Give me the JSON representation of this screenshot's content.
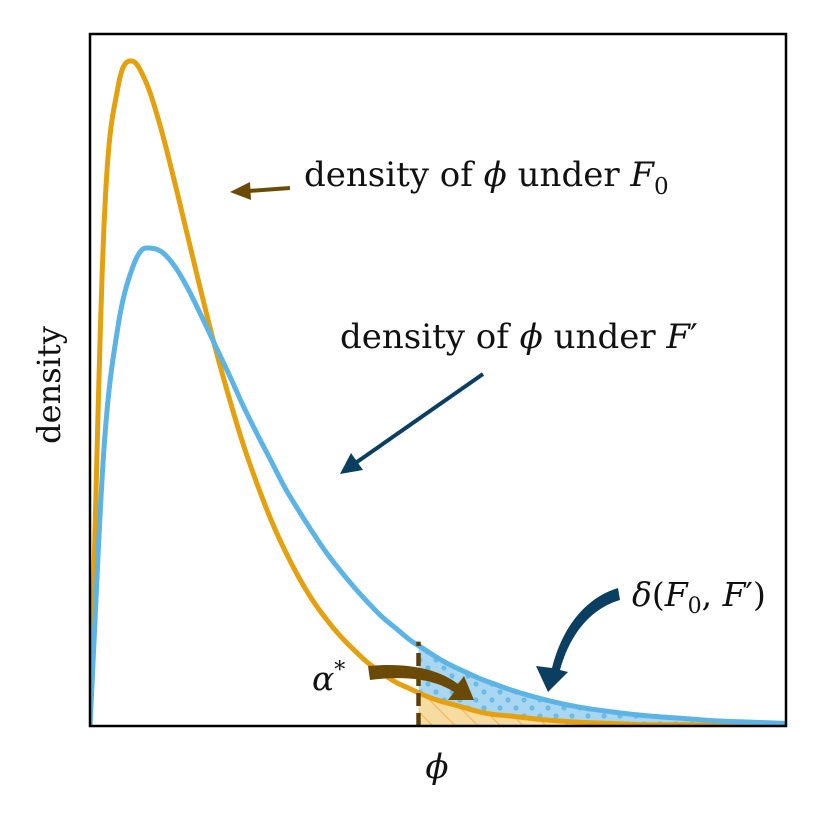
{
  "chart_data": {
    "type": "line",
    "xlabel": "ϕ",
    "ylabel": "density",
    "xlim": [
      0,
      10
    ],
    "ylim": [
      0,
      0.54
    ],
    "grid": false,
    "legend": "none",
    "threshold_x": 4.72,
    "series": [
      {
        "name": "density of ϕ under F0",
        "color": "#E5A00E",
        "x": [
          0,
          0.2,
          0.4,
          0.6,
          0.8,
          1.0,
          1.2,
          1.4,
          1.6,
          1.8,
          2.0,
          2.2,
          2.4,
          2.6,
          2.8,
          3.0,
          3.2,
          3.4,
          3.6,
          3.8,
          4.0,
          4.2,
          4.4,
          4.6,
          4.8,
          5.0,
          5.2,
          5.4,
          5.6,
          5.8,
          6.0,
          6.5,
          7.0,
          7.5,
          8.0,
          8.5,
          9.0,
          9.5,
          10.0
        ],
        "y": [
          0,
          0.389,
          0.498,
          0.519,
          0.503,
          0.47,
          0.428,
          0.383,
          0.338,
          0.295,
          0.256,
          0.22,
          0.189,
          0.161,
          0.137,
          0.116,
          0.098,
          0.083,
          0.07,
          0.059,
          0.049,
          0.041,
          0.034,
          0.029,
          0.024,
          0.02,
          0.017,
          0.014,
          0.011,
          0.009,
          0.008,
          0.005,
          0.003,
          0.002,
          0.001,
          0.001,
          0.0005,
          0.0003,
          0.0002
        ]
      },
      {
        "name": "density of ϕ under F′",
        "color": "#5BB4E5",
        "x": [
          0,
          0.2,
          0.4,
          0.6,
          0.8,
          1.0,
          1.2,
          1.4,
          1.6,
          1.8,
          2.0,
          2.2,
          2.4,
          2.6,
          2.8,
          3.0,
          3.2,
          3.4,
          3.6,
          3.8,
          4.0,
          4.2,
          4.4,
          4.6,
          4.8,
          5.0,
          5.2,
          5.4,
          5.6,
          5.8,
          6.0,
          6.5,
          7.0,
          7.5,
          8.0,
          8.5,
          9.0,
          9.5,
          10.0
        ],
        "y": [
          0,
          0.216,
          0.311,
          0.356,
          0.373,
          0.371,
          0.36,
          0.342,
          0.32,
          0.297,
          0.274,
          0.25,
          0.228,
          0.207,
          0.186,
          0.168,
          0.151,
          0.135,
          0.121,
          0.108,
          0.096,
          0.085,
          0.076,
          0.067,
          0.06,
          0.053,
          0.047,
          0.042,
          0.037,
          0.033,
          0.029,
          0.021,
          0.015,
          0.011,
          0.008,
          0.006,
          0.004,
          0.003,
          0.002
        ]
      }
    ],
    "annotations": [
      {
        "id": "f0",
        "parts": [
          "density of ",
          "ϕ",
          " under ",
          "F",
          "0"
        ]
      },
      {
        "id": "fp",
        "parts": [
          "density of ",
          "ϕ",
          " under ",
          "F",
          "′"
        ]
      },
      {
        "id": "delta",
        "parts": [
          "δ",
          "(",
          "F",
          "0",
          ", ",
          "F",
          "′",
          ")"
        ]
      },
      {
        "id": "alpha",
        "parts": [
          "α",
          "*"
        ]
      }
    ]
  },
  "colors": {
    "f0_line": "#E5A00E",
    "fp_line": "#5BB4E5",
    "f0_arrow": "#6B4A06",
    "fp_arrow": "#0B3F61",
    "threshold": "#5C3F08",
    "alpha_fill": "#F7DCA2",
    "delta_fill": "#A9D7F2"
  }
}
